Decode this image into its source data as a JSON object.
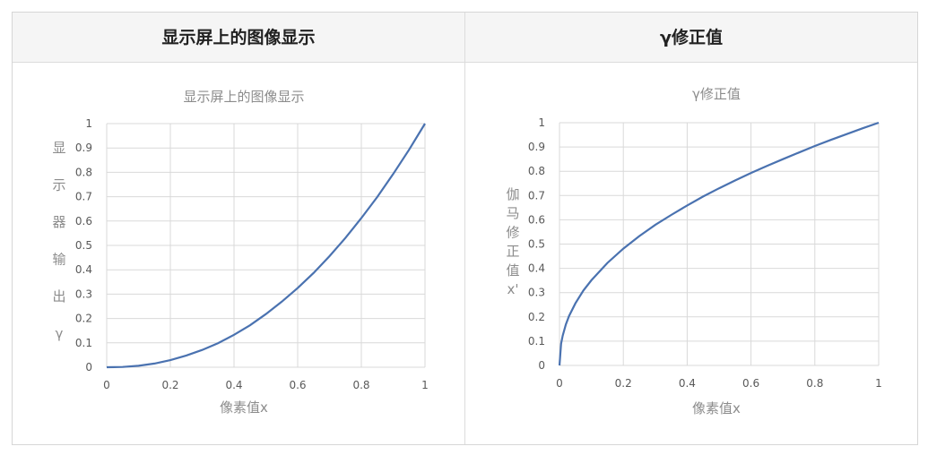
{
  "table": {
    "headers": [
      "显示屏上的图像显示",
      "γ修正值"
    ]
  },
  "chart_data": [
    {
      "type": "line",
      "title": "显示屏上的图像显示",
      "xlabel": "像素值x",
      "ylabel_chars": [
        "显",
        "示",
        "器",
        "输",
        "出",
        "γ"
      ],
      "xlim": [
        0,
        1
      ],
      "ylim": [
        0,
        1
      ],
      "x_ticks": [
        "0",
        "0.2",
        "0.4",
        "0.6",
        "0.8",
        "1"
      ],
      "y_ticks": [
        "0",
        "0.1",
        "0.2",
        "0.3",
        "0.4",
        "0.5",
        "0.6",
        "0.7",
        "0.8",
        "0.9",
        "1"
      ],
      "grid": true,
      "line_color": "#4a72b0",
      "series": [
        {
          "x": [
            0,
            0.05,
            0.1,
            0.15,
            0.2,
            0.25,
            0.3,
            0.35,
            0.4,
            0.45,
            0.5,
            0.55,
            0.6,
            0.65,
            0.7,
            0.75,
            0.8,
            0.85,
            0.9,
            0.95,
            1
          ],
          "values": [
            0,
            0.001,
            0.006,
            0.015,
            0.029,
            0.048,
            0.071,
            0.099,
            0.133,
            0.172,
            0.218,
            0.269,
            0.325,
            0.387,
            0.456,
            0.531,
            0.612,
            0.699,
            0.793,
            0.893,
            1
          ]
        }
      ]
    },
    {
      "type": "line",
      "title": "γ修正值",
      "xlabel": "像素值x",
      "ylabel_chars": [
        "伽",
        "马",
        "修",
        "正",
        "值",
        "x'"
      ],
      "xlim": [
        0,
        1
      ],
      "ylim": [
        0,
        1
      ],
      "x_ticks": [
        "0",
        "0.2",
        "0.4",
        "0.6",
        "0.8",
        "1"
      ],
      "y_ticks": [
        "0",
        "0.1",
        "0.2",
        "0.3",
        "0.4",
        "0.5",
        "0.6",
        "0.7",
        "0.8",
        "0.9",
        "1"
      ],
      "grid": true,
      "line_color": "#4a72b0",
      "series": [
        {
          "x": [
            0,
            0.005,
            0.01,
            0.02,
            0.03,
            0.05,
            0.075,
            0.1,
            0.15,
            0.2,
            0.25,
            0.3,
            0.35,
            0.4,
            0.45,
            0.5,
            0.55,
            0.6,
            0.65,
            0.7,
            0.75,
            0.8,
            0.85,
            0.9,
            0.95,
            1
          ],
          "values": [
            0,
            0.09,
            0.123,
            0.169,
            0.204,
            0.256,
            0.309,
            0.351,
            0.422,
            0.481,
            0.533,
            0.579,
            0.62,
            0.659,
            0.696,
            0.73,
            0.762,
            0.793,
            0.822,
            0.85,
            0.877,
            0.904,
            0.929,
            0.953,
            0.977,
            1
          ]
        }
      ]
    }
  ]
}
